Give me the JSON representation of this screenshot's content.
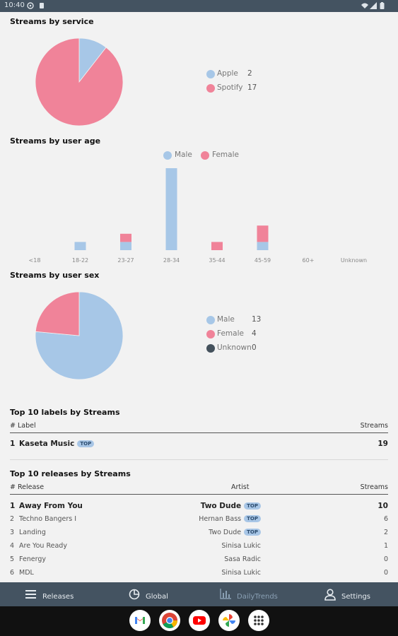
{
  "status_bar": {
    "time": "10:40"
  },
  "sections": {
    "service": {
      "title": "Streams by service"
    },
    "age": {
      "title": "Streams by user age"
    },
    "sex": {
      "title": "Streams by user sex"
    }
  },
  "colors": {
    "male": "#a7c7e7",
    "female": "#f08399",
    "unknown": "#44515c",
    "apple": "#a7c7e7",
    "spotify": "#f08399",
    "nav_bg": "#445361"
  },
  "service_legend": [
    {
      "label": "Apple",
      "value": "2"
    },
    {
      "label": "Spotify",
      "value": "17"
    }
  ],
  "age_legend": [
    {
      "label": "Male"
    },
    {
      "label": "Female"
    }
  ],
  "sex_legend": [
    {
      "label": "Male",
      "value": "13"
    },
    {
      "label": "Female",
      "value": "4"
    },
    {
      "label": "Unknown",
      "value": "0"
    }
  ],
  "chart_data": [
    {
      "type": "pie",
      "title": "Streams by service",
      "categories": [
        "Apple",
        "Spotify"
      ],
      "values": [
        2,
        17
      ],
      "legend": "right"
    },
    {
      "type": "bar",
      "title": "Streams by user age",
      "stacked": true,
      "categories": [
        "<18",
        "18-22",
        "23-27",
        "28-34",
        "35-44",
        "45-59",
        "60+",
        "Unknown"
      ],
      "series": [
        {
          "name": "Male",
          "values": [
            0,
            1,
            1,
            10,
            0,
            1,
            0,
            0
          ]
        },
        {
          "name": "Female",
          "values": [
            0,
            0,
            1,
            0,
            1,
            2,
            0,
            0
          ]
        }
      ],
      "ylim": [
        0,
        10
      ],
      "legend": "top"
    },
    {
      "type": "pie",
      "title": "Streams by user sex",
      "categories": [
        "Male",
        "Female",
        "Unknown"
      ],
      "values": [
        13,
        4,
        0
      ],
      "legend": "right"
    }
  ],
  "labels_table": {
    "title": "Top 10 labels by Streams",
    "col_hash_label": "# Label",
    "col_streams": "Streams",
    "rows": [
      {
        "rank": "1",
        "name": "Kaseta Music",
        "badge": "TOP",
        "streams": "19"
      }
    ]
  },
  "releases_table": {
    "title": "Top 10 releases by Streams",
    "col_hash_release": "# Release",
    "col_artist": "Artist",
    "col_streams": "Streams",
    "rows": [
      {
        "rank": "1",
        "release": "Away From You",
        "artist": "Two Dude",
        "artist_badge": "TOP",
        "streams": "10"
      },
      {
        "rank": "2",
        "release": "Techno Bangers I",
        "artist": "Hernan Bass",
        "artist_badge": "TOP",
        "streams": "6"
      },
      {
        "rank": "3",
        "release": "Landing",
        "artist": "Two Dude",
        "artist_badge": "TOP",
        "streams": "2"
      },
      {
        "rank": "4",
        "release": "Are You Ready",
        "artist": "Sinisa Lukic",
        "artist_badge": "",
        "streams": "1"
      },
      {
        "rank": "5",
        "release": "Fenergy",
        "artist": "Sasa Radic",
        "artist_badge": "",
        "streams": "0"
      },
      {
        "rank": "6",
        "release": "MDL",
        "artist": "Sinisa Lukic",
        "artist_badge": "",
        "streams": "0"
      }
    ]
  },
  "nav": {
    "releases": {
      "label": "Releases",
      "icon": "list-icon"
    },
    "global": {
      "label": "Global",
      "icon": "pie-chart-icon"
    },
    "daily": {
      "label": "DailyTrends",
      "icon": "bar-chart-icon"
    },
    "settings": {
      "label": "Settings",
      "icon": "person-icon"
    }
  },
  "dock": [
    "gmail-icon",
    "chrome-icon",
    "youtube-icon",
    "photos-icon",
    "apps-grid-icon"
  ]
}
